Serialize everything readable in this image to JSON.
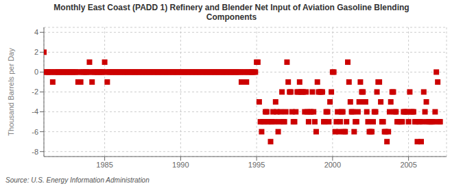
{
  "chart_data": {
    "type": "scatter",
    "title": "Monthly East Coast (PADD 1) Refinery and Blender Net Input of Aviation Gasoline Blending\nComponents",
    "y_label": "Thousand Barrels per Day",
    "annotations": [
      "Source: U.S. Energy Information Administration"
    ],
    "color": "#cc0000",
    "marker": "square",
    "grid": true,
    "xlim": [
      1981.0,
      2007.5
    ],
    "ylim": [
      -8.5,
      4.5
    ],
    "xticks": [
      1985,
      1990,
      1995,
      2000,
      2005
    ],
    "yticks": [
      -8,
      -6,
      -4,
      -2,
      0,
      2,
      4
    ],
    "x": [
      1981.0,
      1981.58,
      1983.25,
      1983.42,
      1984.0,
      1984.17,
      1985.0,
      1985.17,
      1981.08,
      1981.17,
      1981.25,
      1981.33,
      1981.42,
      1981.5,
      1981.67,
      1981.75,
      1981.83,
      1981.92,
      1982.0,
      1982.08,
      1982.17,
      1982.25,
      1982.33,
      1982.42,
      1982.5,
      1982.58,
      1982.67,
      1982.75,
      1982.83,
      1982.92,
      1983.0,
      1983.08,
      1983.17,
      1983.33,
      1983.5,
      1983.58,
      1983.67,
      1983.75,
      1983.83,
      1983.92,
      1984.08,
      1984.25,
      1984.33,
      1984.42,
      1984.5,
      1984.58,
      1984.67,
      1984.75,
      1984.83,
      1984.92,
      1985.08,
      1985.25,
      1985.33,
      1985.42,
      1985.5,
      1985.58,
      1985.67,
      1985.75,
      1985.83,
      1985.92,
      1986.0,
      1986.08,
      1986.17,
      1986.25,
      1986.33,
      1986.42,
      1986.5,
      1986.58,
      1986.67,
      1986.75,
      1986.83,
      1986.92,
      1987.0,
      1987.08,
      1987.17,
      1987.25,
      1987.33,
      1987.42,
      1987.5,
      1987.58,
      1987.67,
      1987.75,
      1987.83,
      1987.92,
      1988.0,
      1988.08,
      1988.17,
      1988.25,
      1988.33,
      1988.42,
      1988.5,
      1988.58,
      1988.67,
      1988.75,
      1988.83,
      1988.92,
      1989.0,
      1989.08,
      1989.17,
      1989.25,
      1989.33,
      1989.42,
      1989.5,
      1989.58,
      1989.67,
      1989.75,
      1989.83,
      1989.92,
      1990.0,
      1990.08,
      1990.17,
      1990.25,
      1990.33,
      1990.42,
      1990.5,
      1990.58,
      1990.67,
      1990.75,
      1990.83,
      1990.92,
      1991.0,
      1991.08,
      1991.17,
      1991.25,
      1991.33,
      1991.42,
      1991.5,
      1991.58,
      1991.67,
      1991.75,
      1991.83,
      1991.92,
      1992.0,
      1992.08,
      1992.17,
      1992.25,
      1992.33,
      1992.42,
      1992.5,
      1992.58,
      1992.67,
      1992.75,
      1992.83,
      1992.92,
      1993.0,
      1993.08,
      1993.17,
      1993.25,
      1993.33,
      1993.42,
      1993.5,
      1993.58,
      1993.67,
      1993.75,
      1993.83,
      1993.92,
      1994.0,
      1994.33,
      1994.08,
      1994.17,
      1994.25,
      1994.42,
      1994.5,
      1994.58,
      1994.67,
      1994.75,
      1994.83,
      1994.92,
      1995.0,
      1995.08,
      1995.17,
      1995.25,
      1995.33,
      1995.42,
      1995.5,
      1995.58,
      1995.67,
      1995.75,
      1995.83,
      1995.92,
      1996.0,
      1996.08,
      1996.17,
      1996.25,
      1996.33,
      1996.42,
      1996.5,
      1996.58,
      1996.67,
      1996.75,
      1996.83,
      1996.92,
      1997.0,
      1997.08,
      1997.17,
      1997.25,
      1997.33,
      1997.42,
      1997.5,
      1997.58,
      1997.67,
      1997.75,
      1997.83,
      1997.92,
      1998.0,
      1998.08,
      1998.17,
      1998.25,
      1998.33,
      1998.42,
      1998.5,
      1998.58,
      1998.67,
      1998.75,
      1998.83,
      1998.92,
      1999.0,
      1999.08,
      1999.17,
      1999.25,
      1999.33,
      1999.42,
      1999.5,
      1999.58,
      1999.67,
      1999.75,
      1999.83,
      1999.92,
      2000.0,
      2000.08,
      2000.17,
      2000.25,
      2000.33,
      2000.42,
      2000.5,
      2000.58,
      2000.67,
      2000.75,
      2000.83,
      2000.92,
      2001.0,
      2001.08,
      2001.17,
      2001.25,
      2001.33,
      2001.42,
      2001.5,
      2001.58,
      2001.67,
      2001.75,
      2001.83,
      2001.92,
      2002.0,
      2002.08,
      2002.17,
      2002.25,
      2002.33,
      2002.42,
      2002.5,
      2002.58,
      2002.67,
      2002.75,
      2002.83,
      2002.92,
      2003.0,
      2003.08,
      2003.17,
      2003.25,
      2003.33,
      2003.42,
      2003.5,
      2003.58,
      2003.67,
      2003.75,
      2003.83,
      2003.92,
      2004.0,
      2004.08,
      2004.17,
      2004.25,
      2004.33,
      2004.42,
      2004.5,
      2004.58,
      2004.67,
      2004.75,
      2004.83,
      2004.92,
      2005.0,
      2005.08,
      2005.17,
      2005.25,
      2005.33,
      2005.42,
      2005.5,
      2005.58,
      2005.67,
      2005.75,
      2005.83,
      2005.92,
      2006.0,
      2006.08,
      2006.17,
      2006.25,
      2006.33,
      2006.42,
      2006.5,
      2006.58,
      2006.67,
      2006.75,
      2006.83,
      2006.92,
      2007.0,
      2007.08
    ],
    "values": [
      2.0,
      -1.0,
      -1.0,
      -1.0,
      1.0,
      -1.0,
      1.0,
      -1.0,
      0.0,
      0.0,
      0.0,
      0.0,
      0.0,
      0.0,
      0.0,
      0.0,
      0.0,
      0.0,
      0.0,
      0.0,
      0.0,
      0.0,
      0.0,
      0.0,
      0.0,
      0.0,
      0.0,
      0.0,
      0.0,
      0.0,
      0.0,
      0.0,
      0.0,
      0.0,
      0.0,
      0.0,
      0.0,
      0.0,
      0.0,
      0.0,
      0.0,
      0.0,
      0.0,
      0.0,
      0.0,
      0.0,
      0.0,
      0.0,
      0.0,
      0.0,
      0.0,
      0.0,
      0.0,
      0.0,
      0.0,
      0.0,
      0.0,
      0.0,
      0.0,
      0.0,
      0.0,
      0.0,
      0.0,
      0.0,
      0.0,
      0.0,
      0.0,
      0.0,
      0.0,
      0.0,
      0.0,
      0.0,
      0.0,
      0.0,
      0.0,
      0.0,
      0.0,
      0.0,
      0.0,
      0.0,
      0.0,
      0.0,
      0.0,
      0.0,
      0.0,
      0.0,
      0.0,
      0.0,
      0.0,
      0.0,
      0.0,
      0.0,
      0.0,
      0.0,
      0.0,
      0.0,
      0.0,
      0.0,
      0.0,
      0.0,
      0.0,
      0.0,
      0.0,
      0.0,
      0.0,
      0.0,
      0.0,
      0.0,
      0.0,
      0.0,
      0.0,
      0.0,
      0.0,
      0.0,
      0.0,
      0.0,
      0.0,
      0.0,
      0.0,
      0.0,
      0.0,
      0.0,
      0.0,
      0.0,
      0.0,
      0.0,
      0.0,
      0.0,
      0.0,
      0.0,
      0.0,
      0.0,
      0.0,
      0.0,
      0.0,
      0.0,
      0.0,
      0.0,
      0.0,
      0.0,
      0.0,
      0.0,
      0.0,
      0.0,
      0.0,
      0.0,
      0.0,
      0.0,
      0.0,
      0.0,
      0.0,
      0.0,
      0.0,
      0.0,
      0.0,
      0.0,
      -1.0,
      -1.0,
      0.0,
      0.0,
      0.0,
      0.0,
      0.0,
      0.0,
      0.0,
      0.0,
      0.0,
      0.0,
      1.0,
      1.0,
      -3.0,
      -5.0,
      -6.0,
      -5.0,
      -5.0,
      -4.0,
      -4.0,
      -5.0,
      -5.0,
      -7.0,
      -5.0,
      -4.0,
      -5.0,
      -3.0,
      -4.0,
      -6.0,
      -5.0,
      -4.0,
      -2.0,
      -5.0,
      -5.0,
      -4.0,
      1.0,
      -1.0,
      -2.0,
      -2.0,
      -4.0,
      -5.0,
      -5.0,
      -4.0,
      -2.0,
      -2.0,
      -1.0,
      -2.0,
      -2.0,
      -2.0,
      -4.0,
      -2.0,
      -4.0,
      -5.0,
      -4.0,
      -4.0,
      -2.0,
      -4.0,
      -5.0,
      -6.0,
      -1.0,
      -2.0,
      -2.0,
      -2.0,
      -2.0,
      -5.0,
      -5.0,
      -4.0,
      -4.0,
      -5.0,
      -3.0,
      -2.0,
      0.0,
      0.0,
      -6.0,
      -5.0,
      -4.0,
      -6.0,
      -5.0,
      -4.0,
      -4.0,
      -6.0,
      -6.0,
      -5.0,
      1.0,
      -1.0,
      -3.0,
      -4.0,
      -4.0,
      -6.0,
      -5.0,
      -5.0,
      -4.0,
      -3.0,
      -1.0,
      -2.0,
      -2.0,
      -3.0,
      -3.0,
      -4.0,
      -5.0,
      -6.0,
      -6.0,
      -6.0,
      -5.0,
      -4.0,
      -4.0,
      -2.0,
      -1.0,
      -1.0,
      -3.0,
      -5.0,
      -5.0,
      -6.0,
      -6.0,
      -7.0,
      -6.0,
      -4.0,
      -3.0,
      -2.0,
      -2.0,
      -4.0,
      -4.0,
      -5.0,
      -5.0,
      -5.0,
      -5.0,
      -5.0,
      -4.0,
      -4.0,
      -4.0,
      -4.0,
      -5.0,
      -2.0,
      -4.0,
      -4.0,
      -4.0,
      -5.0,
      -5.0,
      -7.0,
      -5.0,
      -5.0,
      -7.0,
      -5.0,
      -2.0,
      -4.0,
      -3.0,
      -5.0,
      -5.0,
      -5.0,
      -5.0,
      -5.0,
      -5.0,
      -4.0,
      0.0,
      -1.0,
      -5.0,
      -5.0
    ]
  }
}
